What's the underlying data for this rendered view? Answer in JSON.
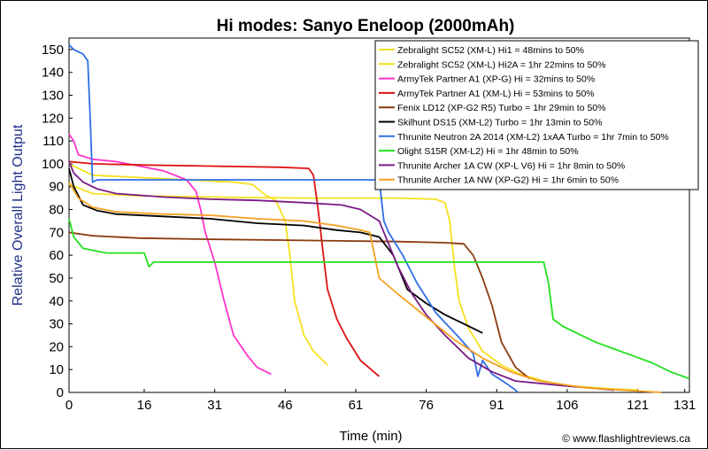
{
  "chart_data": {
    "type": "line",
    "title": "Hi modes: Sanyo Eneloop (2000mAh)",
    "xlabel": "Time (min)",
    "ylabel": "Relative Overall Light Output",
    "credit": "© www.flashlightreviews.ca",
    "xlim": [
      0,
      132
    ],
    "ylim": [
      0,
      155
    ],
    "xticks": [
      0,
      16,
      31,
      46,
      61,
      76,
      91,
      106,
      121,
      131
    ],
    "yticks": [
      0,
      10,
      20,
      30,
      40,
      50,
      60,
      70,
      80,
      90,
      100,
      110,
      120,
      130,
      140,
      150
    ],
    "grid": false,
    "legend_position": "top-right",
    "series": [
      {
        "name": "Zebralight SC52 (XM-L) Hi1 = 48mins to 50%",
        "color": "#f5e11e",
        "points": [
          [
            0,
            100
          ],
          [
            5,
            95
          ],
          [
            15,
            94
          ],
          [
            25,
            93
          ],
          [
            35,
            92
          ],
          [
            39,
            91
          ],
          [
            42,
            86
          ],
          [
            44,
            84
          ],
          [
            46,
            75
          ],
          [
            47,
            60
          ],
          [
            48,
            40
          ],
          [
            50,
            25
          ],
          [
            52,
            18
          ],
          [
            55,
            12
          ]
        ]
      },
      {
        "name": "Zebralight SC52 (XM-L) Hi2A = 1hr 22mins to 50%",
        "color": "#f5e11e",
        "points": [
          [
            0,
            91
          ],
          [
            5,
            87
          ],
          [
            15,
            86
          ],
          [
            30,
            85.5
          ],
          [
            50,
            85
          ],
          [
            70,
            85
          ],
          [
            78,
            84.5
          ],
          [
            80,
            83
          ],
          [
            81,
            75
          ],
          [
            82,
            55
          ],
          [
            83,
            40
          ],
          [
            85,
            28
          ],
          [
            88,
            18
          ],
          [
            92,
            12
          ],
          [
            96,
            8
          ],
          [
            101,
            5
          ],
          [
            106,
            3
          ],
          [
            116,
            1.5
          ],
          [
            121,
            1
          ]
        ]
      },
      {
        "name": "ArmyTek Partner A1 (XP-G) Hi = 32mins to 50%",
        "color": "#ff33cc",
        "points": [
          [
            0,
            113
          ],
          [
            1,
            110
          ],
          [
            2,
            104
          ],
          [
            5,
            102
          ],
          [
            10,
            101
          ],
          [
            15,
            99
          ],
          [
            20,
            97
          ],
          [
            25,
            93
          ],
          [
            27,
            88
          ],
          [
            28,
            80
          ],
          [
            29,
            70
          ],
          [
            31,
            57
          ],
          [
            33,
            40
          ],
          [
            35,
            25
          ],
          [
            38,
            16
          ],
          [
            40,
            11
          ],
          [
            43,
            8
          ]
        ]
      },
      {
        "name": "ArmyTek Partner A1 (XM-L) Hi = 53mins to 50%",
        "color": "#dd1111",
        "points": [
          [
            0,
            101
          ],
          [
            5,
            100
          ],
          [
            15,
            99.5
          ],
          [
            30,
            99
          ],
          [
            45,
            98.5
          ],
          [
            51,
            98
          ],
          [
            52,
            95
          ],
          [
            53,
            80
          ],
          [
            54,
            62
          ],
          [
            55,
            45
          ],
          [
            57,
            32
          ],
          [
            59,
            24
          ],
          [
            62,
            14
          ],
          [
            66,
            7
          ]
        ]
      },
      {
        "name": "Fenix LD12 (XP-G2 R5) Turbo = 1hr 29min to 50%",
        "color": "#8b3a0f",
        "points": [
          [
            0,
            70
          ],
          [
            5,
            68.5
          ],
          [
            15,
            67.5
          ],
          [
            30,
            67
          ],
          [
            50,
            66.5
          ],
          [
            70,
            66
          ],
          [
            80,
            65.5
          ],
          [
            84,
            65
          ],
          [
            86,
            60
          ],
          [
            88,
            50
          ],
          [
            90,
            38
          ],
          [
            92,
            22
          ],
          [
            95,
            11
          ],
          [
            98,
            6
          ]
        ]
      },
      {
        "name": "Skilhunt DS15 (XM-L2) Turbo = 1hr 13min to 50%",
        "color": "#000000",
        "points": [
          [
            0,
            98
          ],
          [
            1,
            90
          ],
          [
            3,
            82
          ],
          [
            6,
            79.5
          ],
          [
            10,
            78
          ],
          [
            20,
            77
          ],
          [
            30,
            76
          ],
          [
            40,
            74
          ],
          [
            50,
            73
          ],
          [
            57,
            71
          ],
          [
            62,
            70
          ],
          [
            66,
            68
          ],
          [
            69,
            60
          ],
          [
            72,
            45
          ],
          [
            76,
            39
          ],
          [
            80,
            34
          ],
          [
            84,
            30
          ],
          [
            88,
            26
          ]
        ]
      },
      {
        "name": "Thrunite Neutron 2A 2014 (XM-L2) 1xAA Turbo = 1hr 7min to 50%",
        "color": "#2e6ee5",
        "points": [
          [
            0,
            152
          ],
          [
            1,
            150
          ],
          [
            3,
            148
          ],
          [
            4,
            145
          ],
          [
            4.5,
            120
          ],
          [
            5,
            92
          ],
          [
            6,
            93
          ],
          [
            10,
            93
          ],
          [
            20,
            93
          ],
          [
            40,
            93
          ],
          [
            60,
            93
          ],
          [
            66,
            93
          ],
          [
            67,
            75
          ],
          [
            68,
            70
          ],
          [
            71,
            60
          ],
          [
            74,
            48
          ],
          [
            78,
            35
          ],
          [
            83,
            24
          ],
          [
            86,
            17
          ],
          [
            87,
            7
          ],
          [
            88,
            14
          ],
          [
            90,
            8
          ],
          [
            93,
            4
          ],
          [
            95,
            1
          ],
          [
            95.5,
            0
          ]
        ]
      },
      {
        "name": "Olight S15R (XM-L2) Hi = 1hr 48min to 50%",
        "color": "#22e11e",
        "points": [
          [
            0,
            76
          ],
          [
            1,
            68
          ],
          [
            3,
            63
          ],
          [
            8,
            61
          ],
          [
            14,
            61
          ],
          [
            16,
            61
          ],
          [
            17,
            55
          ],
          [
            18,
            57
          ],
          [
            25,
            57
          ],
          [
            40,
            57
          ],
          [
            60,
            57
          ],
          [
            80,
            57
          ],
          [
            101,
            57
          ],
          [
            102,
            48
          ],
          [
            103,
            32
          ],
          [
            105,
            29
          ],
          [
            108,
            26
          ],
          [
            112,
            22
          ],
          [
            116,
            19
          ],
          [
            120,
            16
          ],
          [
            124,
            13
          ],
          [
            128,
            9
          ],
          [
            132,
            6
          ]
        ]
      },
      {
        "name": "Thrunite Archer 1A CW (XP-L V6) Hi = 1hr 8min to 50%",
        "color": "#7a1b86",
        "points": [
          [
            0,
            101
          ],
          [
            1,
            96
          ],
          [
            3,
            92
          ],
          [
            6,
            89
          ],
          [
            10,
            87
          ],
          [
            20,
            85.5
          ],
          [
            30,
            84.5
          ],
          [
            40,
            84
          ],
          [
            50,
            83
          ],
          [
            58,
            82
          ],
          [
            62,
            80
          ],
          [
            66,
            75
          ],
          [
            68,
            65
          ],
          [
            70,
            55
          ],
          [
            73,
            43
          ],
          [
            76,
            34
          ],
          [
            80,
            25
          ],
          [
            85,
            15
          ],
          [
            90,
            9
          ],
          [
            95,
            5
          ],
          [
            105,
            3
          ],
          [
            116,
            1
          ]
        ]
      },
      {
        "name": "Thrunite Archer 1A NW (XP-G2) Hi = 1hr 6min to 50%",
        "color": "#f4a020",
        "points": [
          [
            0,
            92
          ],
          [
            2,
            85
          ],
          [
            5,
            81
          ],
          [
            10,
            79
          ],
          [
            20,
            78
          ],
          [
            30,
            77.5
          ],
          [
            40,
            76
          ],
          [
            50,
            75
          ],
          [
            57,
            73
          ],
          [
            62,
            71
          ],
          [
            64,
            70
          ],
          [
            65,
            60
          ],
          [
            66,
            50
          ],
          [
            70,
            43
          ],
          [
            76,
            33
          ],
          [
            82,
            23
          ],
          [
            88,
            15
          ],
          [
            94,
            9
          ],
          [
            100,
            5
          ],
          [
            110,
            2
          ],
          [
            126,
            0
          ]
        ]
      }
    ]
  }
}
